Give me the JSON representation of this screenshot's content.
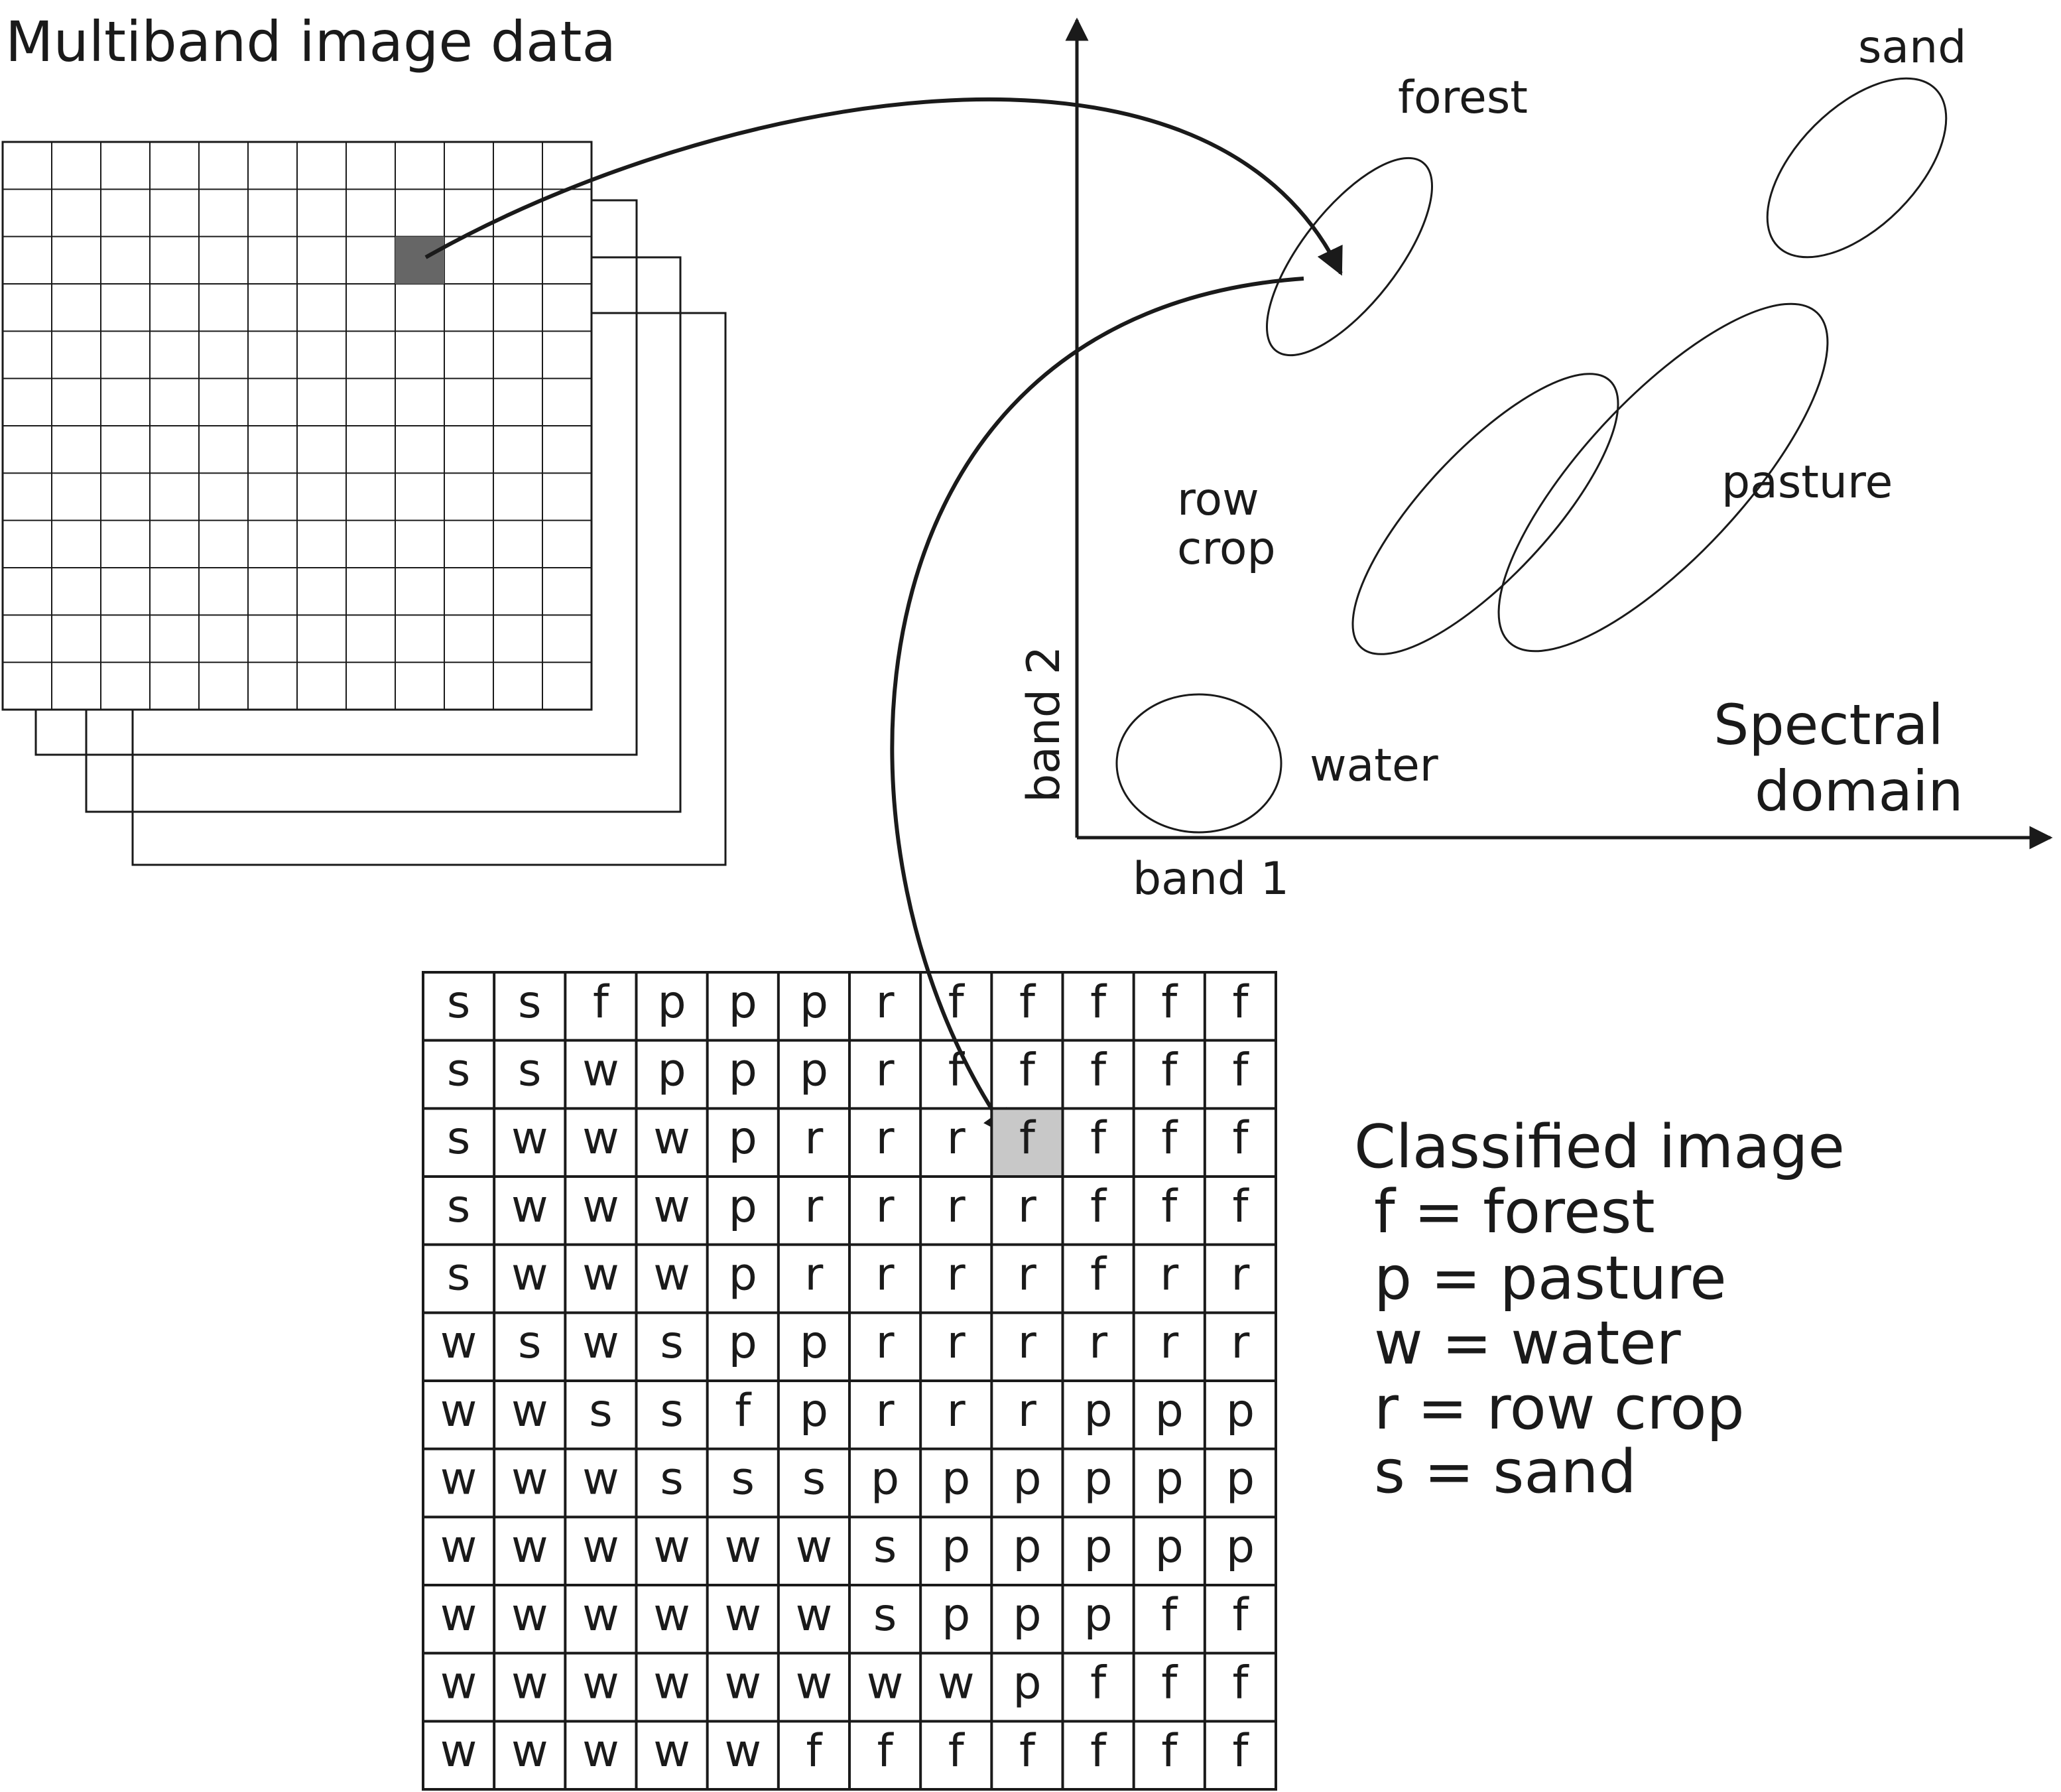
{
  "multiband": {
    "title": "Multiband image data",
    "rows": 12,
    "cols": 12,
    "highlight_cell": {
      "row": 2,
      "col": 8
    },
    "highlight_color": "#666666",
    "stack_layers": 4
  },
  "spectral": {
    "title_line1": "Spectral",
    "title_line2": "domain",
    "x_axis_label": "band 1",
    "y_axis_label": "band 2",
    "classes": {
      "forest": "forest",
      "sand": "sand",
      "row_crop_line1": "row",
      "row_crop_line2": "crop",
      "pasture": "pasture",
      "water": "water"
    }
  },
  "classified": {
    "title": "Classified image",
    "highlight_cell": {
      "row": 2,
      "col": 8
    },
    "highlight_color": "#c8c8c8",
    "grid": [
      [
        "s",
        "s",
        "f",
        "p",
        "p",
        "p",
        "r",
        "f",
        "f",
        "f",
        "f",
        "f"
      ],
      [
        "s",
        "s",
        "w",
        "p",
        "p",
        "p",
        "r",
        "f",
        "f",
        "f",
        "f",
        "f"
      ],
      [
        "s",
        "w",
        "w",
        "w",
        "p",
        "r",
        "r",
        "r",
        "f",
        "f",
        "f",
        "f"
      ],
      [
        "s",
        "w",
        "w",
        "w",
        "p",
        "r",
        "r",
        "r",
        "r",
        "f",
        "f",
        "f"
      ],
      [
        "s",
        "w",
        "w",
        "w",
        "p",
        "r",
        "r",
        "r",
        "r",
        "f",
        "r",
        "r"
      ],
      [
        "w",
        "s",
        "w",
        "s",
        "p",
        "p",
        "r",
        "r",
        "r",
        "r",
        "r",
        "r"
      ],
      [
        "w",
        "w",
        "s",
        "s",
        "f",
        "p",
        "r",
        "r",
        "r",
        "p",
        "p",
        "p"
      ],
      [
        "w",
        "w",
        "w",
        "s",
        "s",
        "s",
        "p",
        "p",
        "p",
        "p",
        "p",
        "p"
      ],
      [
        "w",
        "w",
        "w",
        "w",
        "w",
        "w",
        "s",
        "p",
        "p",
        "p",
        "p",
        "p"
      ],
      [
        "w",
        "w",
        "w",
        "w",
        "w",
        "w",
        "s",
        "p",
        "p",
        "p",
        "f",
        "f"
      ],
      [
        "w",
        "w",
        "w",
        "w",
        "w",
        "w",
        "w",
        "w",
        "p",
        "f",
        "f",
        "f"
      ],
      [
        "w",
        "w",
        "w",
        "w",
        "w",
        "f",
        "f",
        "f",
        "f",
        "f",
        "f",
        "f"
      ]
    ],
    "legend": [
      "f = forest",
      "p = pasture",
      "w = water",
      "r = row crop",
      "s = sand"
    ]
  }
}
